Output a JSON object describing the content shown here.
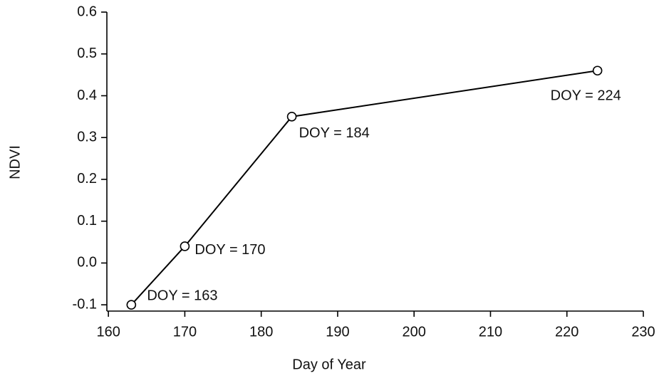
{
  "chart_data": {
    "type": "line",
    "x_label": "Day of Year",
    "y_label": "NDVI",
    "x": [
      163,
      170,
      184,
      224
    ],
    "values": [
      -0.1,
      0.04,
      0.35,
      0.46
    ],
    "annotations": [
      "DOY = 163",
      "DOY = 170",
      "DOY = 184",
      "DOY = 224"
    ],
    "color": "#000000",
    "xlim": [
      159.8,
      230
    ],
    "xticks": [
      160,
      170,
      180,
      190,
      200,
      210,
      220,
      230
    ],
    "ylim": [
      -0.115,
      0.6
    ],
    "yticks": [
      -0.1,
      {
        "value": 0,
        "label": "0.0"
      },
      0.1,
      0.2,
      0.3,
      0.4,
      0.5,
      0.6
    ],
    "grid": false
  }
}
